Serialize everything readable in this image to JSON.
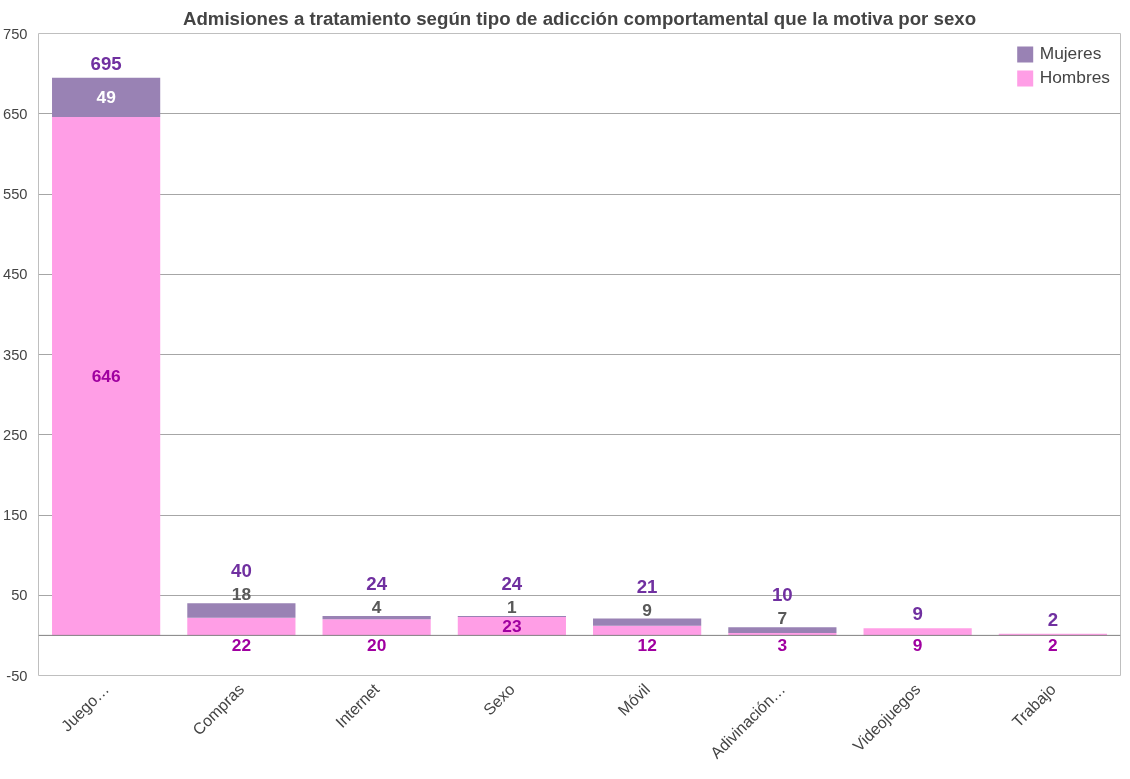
{
  "chart_data": {
    "type": "bar",
    "title": "Admisiones a tratamiento según tipo de adicción comportamental que la motiva por sexo",
    "categories": [
      "Juego…",
      "Compras",
      "Internet",
      "Sexo",
      "Móvil",
      "Adivinación…",
      "Videojuegos",
      "Trabajo"
    ],
    "stacked": true,
    "series": [
      {
        "name": "Hombres",
        "color": "#ff9ee6",
        "values": [
          646,
          22,
          20,
          23,
          12,
          3,
          9,
          2
        ],
        "value_labels": [
          "646",
          "22",
          "20",
          "23",
          "12",
          "3",
          "9",
          "2"
        ]
      },
      {
        "name": "Mujeres",
        "color": "#9982b4",
        "values": [
          49,
          18,
          4,
          1,
          9,
          7,
          0,
          0
        ],
        "value_labels": [
          "49",
          "18",
          "4",
          "1",
          "9",
          "7",
          null,
          null
        ]
      }
    ],
    "totals": [
      "695",
      "40",
      "24",
      "24",
      "21",
      "10",
      "9",
      "2"
    ],
    "ylim": [
      -50,
      750
    ],
    "yticks": [
      -50,
      50,
      150,
      250,
      350,
      450,
      550,
      650,
      750
    ],
    "grid": "y",
    "legend": "top right"
  }
}
